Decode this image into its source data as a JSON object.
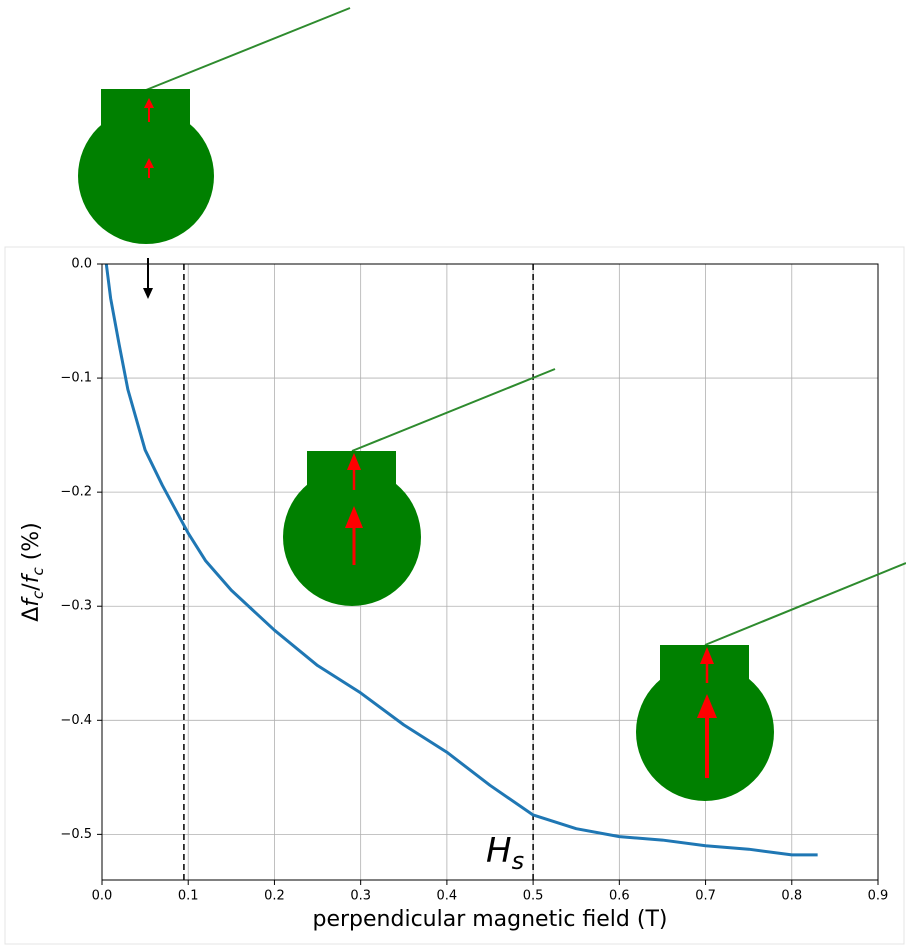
{
  "chart_data": {
    "type": "line",
    "x": [
      0.005,
      0.01,
      0.02,
      0.03,
      0.05,
      0.07,
      0.1,
      0.12,
      0.15,
      0.2,
      0.25,
      0.3,
      0.35,
      0.4,
      0.45,
      0.5,
      0.55,
      0.6,
      0.65,
      0.7,
      0.75,
      0.8,
      0.83
    ],
    "series": [
      {
        "color": "#1f77b4",
        "values": [
          0.0,
          -0.03,
          -0.071,
          -0.11,
          -0.163,
          -0.194,
          -0.236,
          -0.26,
          -0.286,
          -0.321,
          -0.352,
          -0.376,
          -0.404,
          -0.428,
          -0.457,
          -0.483,
          -0.495,
          -0.502,
          -0.505,
          -0.51,
          -0.513,
          -0.518,
          -0.518
        ]
      }
    ],
    "xlabel": "perpendicular magnetic field (T)",
    "ylabel": [
      {
        "text": "Δ"
      },
      {
        "text": "f",
        "italic": true
      },
      {
        "text": "c",
        "sub": true
      },
      {
        "text": "/"
      },
      {
        "text": "f",
        "italic": true
      },
      {
        "text": "c",
        "sub": true
      },
      {
        "text": " (%)"
      }
    ],
    "xlim": [
      0,
      0.9
    ],
    "ylim": [
      -0.54,
      0
    ],
    "xticks": [
      {
        "value": 0,
        "label": "0.0"
      },
      0.1,
      0.2,
      0.3,
      0.4,
      0.5,
      0.6,
      0.7,
      0.8,
      0.9
    ],
    "yticks": [
      {
        "value": 0,
        "label": "0.0"
      },
      {
        "value": -0.1,
        "label": "−0.1"
      },
      {
        "value": -0.2,
        "label": "−0.2"
      },
      {
        "value": -0.3,
        "label": "−0.3"
      },
      {
        "value": -0.4,
        "label": "−0.4"
      },
      {
        "value": -0.5,
        "label": "−0.5"
      }
    ],
    "grid": true,
    "vlines": [
      0.095,
      0.5
    ],
    "annotation": {
      "text": "H",
      "sub": "s"
    }
  }
}
